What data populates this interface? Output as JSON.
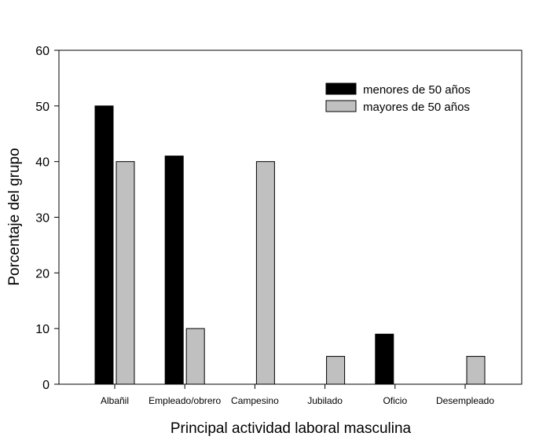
{
  "chart_data": {
    "type": "bar",
    "title": "",
    "xlabel": "Principal actividad laboral masculina",
    "ylabel": "Porcentaje del grupo",
    "ylim": [
      0,
      60
    ],
    "yticks": [
      0,
      10,
      20,
      30,
      40,
      50,
      60
    ],
    "grid": false,
    "legend_position": "top-right",
    "categories": [
      "Albañil",
      "Empleado/obrero",
      "Campesino",
      "Jubilado",
      "Oficio",
      "Desempleado"
    ],
    "series": [
      {
        "name": "menores de 50 años",
        "color": "#000000",
        "values": [
          50,
          41,
          0,
          0,
          9,
          0
        ]
      },
      {
        "name": "mayores de 50 años",
        "color": "#c0c0c0",
        "values": [
          40,
          10,
          40,
          5,
          0,
          5
        ]
      }
    ]
  }
}
